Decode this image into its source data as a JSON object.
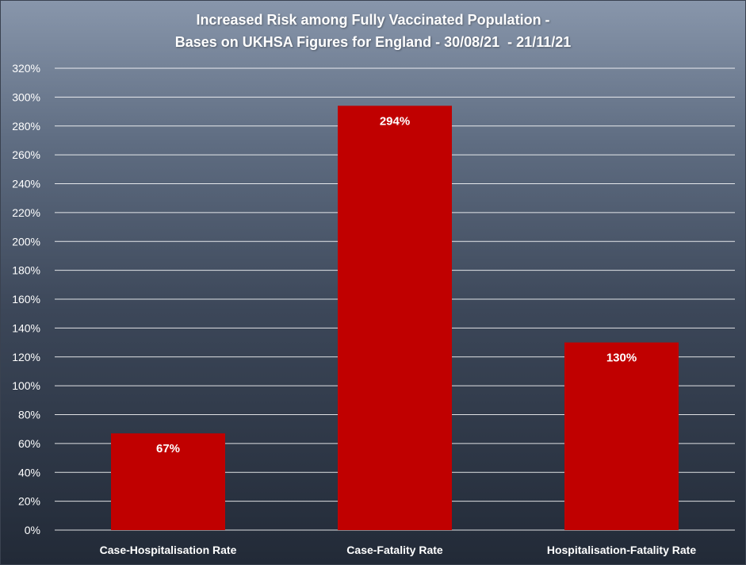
{
  "chart_data": {
    "type": "bar",
    "title": [
      "Increased Risk among Fully Vaccinated Population -",
      "Bases on UKHSA Figures for England - 30/08/21  - 21/11/21"
    ],
    "categories": [
      "Case-Hospitalisation Rate",
      "Case-Fatality Rate",
      "Hospitalisation-Fatality Rate"
    ],
    "values": [
      67,
      294,
      130
    ],
    "data_labels": [
      "67%",
      "294%",
      "130%"
    ],
    "ylim": [
      0,
      320
    ],
    "ytick_step": 20,
    "ytick_suffix": "%",
    "xlabel": "",
    "ylabel": "",
    "grid": true,
    "legend": false,
    "colors": {
      "bar": "#c00000",
      "grid": "#ffffff",
      "text": "#ffffff"
    }
  }
}
